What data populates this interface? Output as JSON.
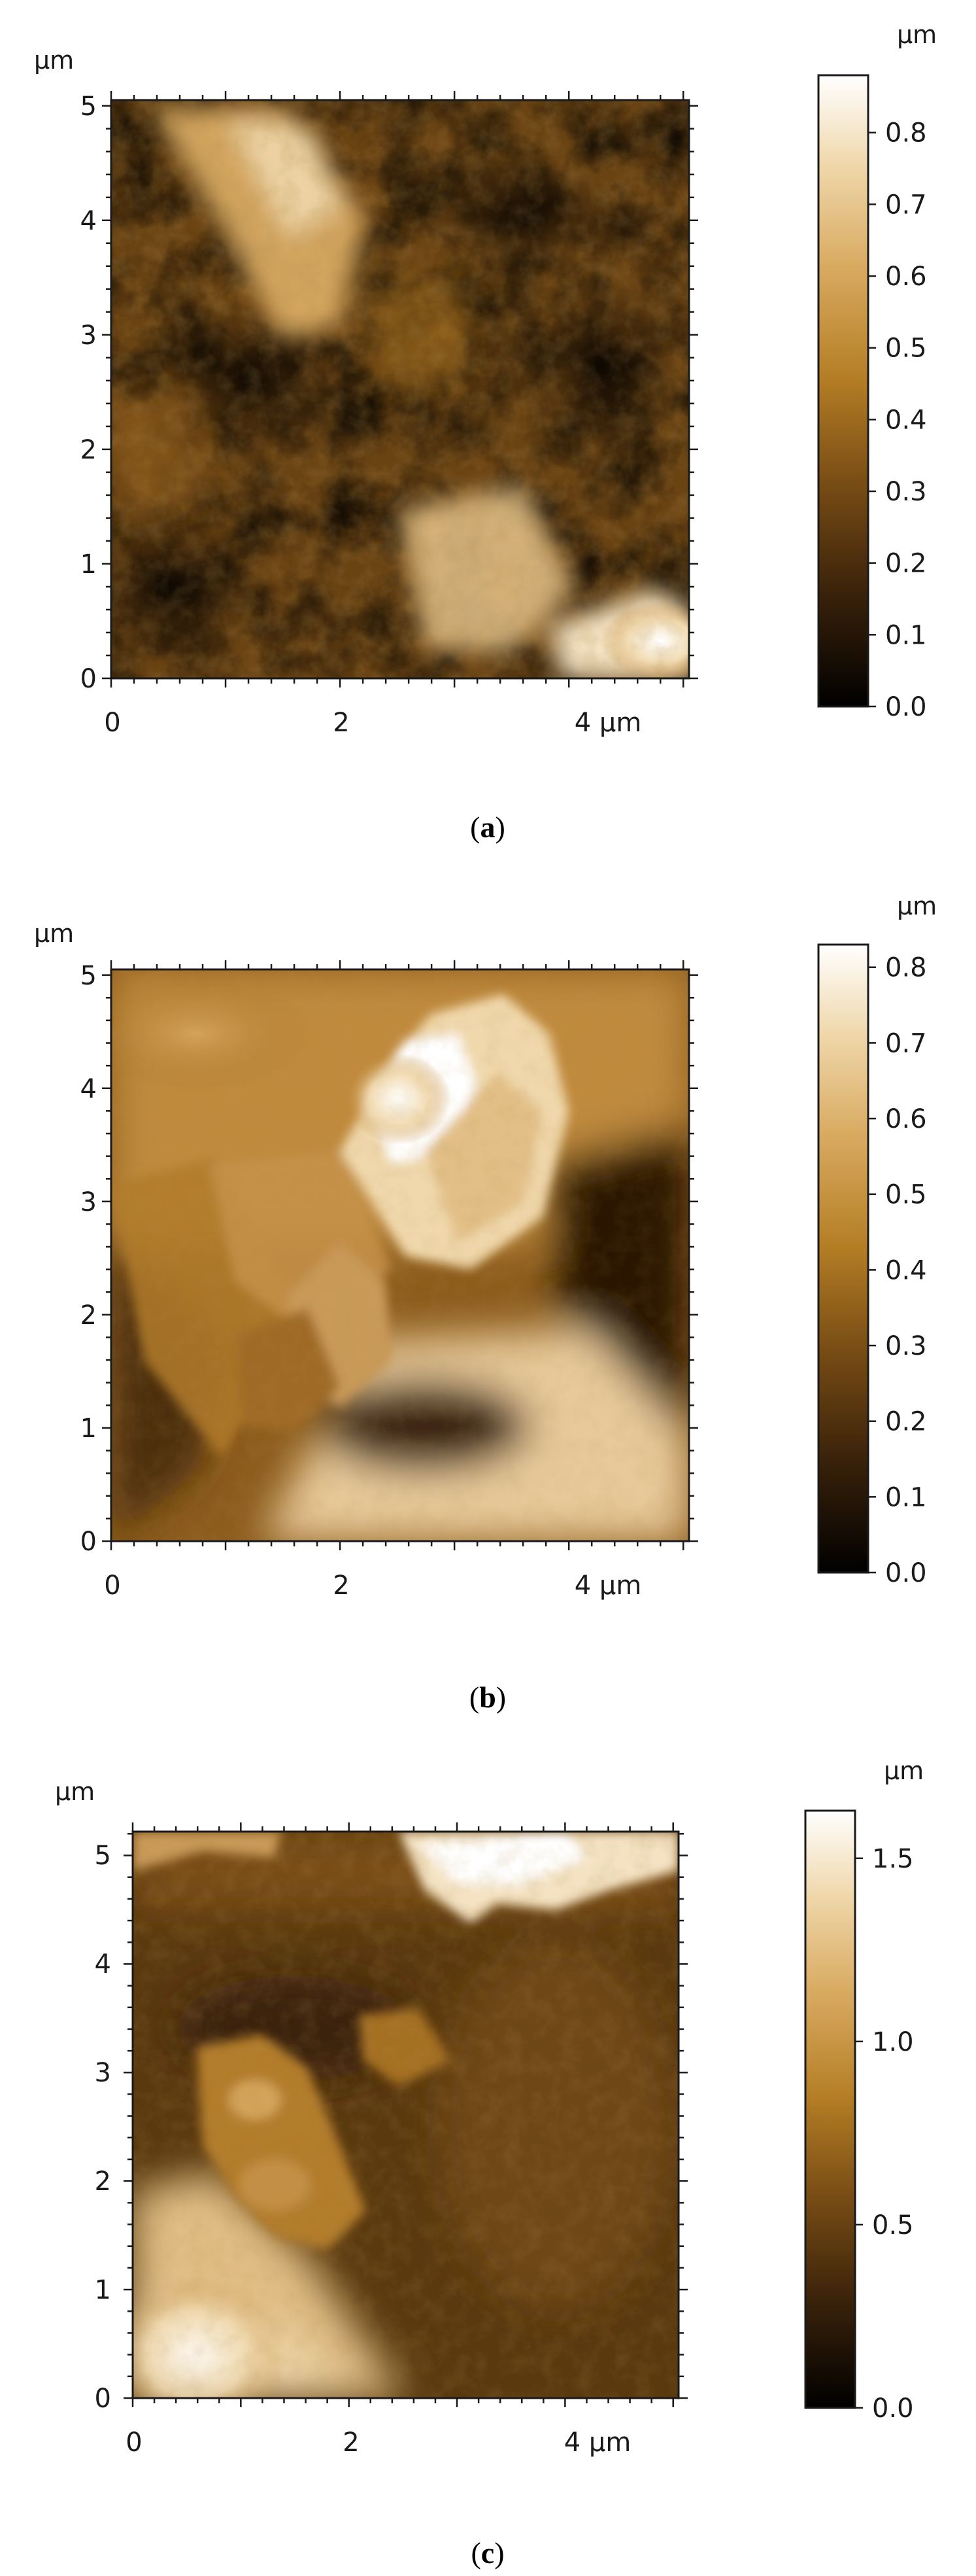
{
  "panels": [
    {
      "id": "a",
      "label_open": "(",
      "label_letter": "a",
      "label_close": ")",
      "axis_unit": "µm",
      "x_ticks": [
        "0",
        "2",
        "4 µm"
      ],
      "y_ticks": [
        "0",
        "1",
        "2",
        "3",
        "4",
        "5"
      ],
      "colorbar_unit": "µm",
      "colorbar_ticks": [
        "0.0",
        "0.1",
        "0.2",
        "0.3",
        "0.4",
        "0.5",
        "0.6",
        "0.7",
        "0.8"
      ],
      "colorbar_max": 0.88
    },
    {
      "id": "b",
      "label_open": "(",
      "label_letter": "b",
      "label_close": ")",
      "axis_unit": "µm",
      "x_ticks": [
        "0",
        "2",
        "4 µm"
      ],
      "y_ticks": [
        "0",
        "1",
        "2",
        "3",
        "4",
        "5"
      ],
      "colorbar_unit": "µm",
      "colorbar_ticks": [
        "0.0",
        "0.1",
        "0.2",
        "0.3",
        "0.4",
        "0.5",
        "0.6",
        "0.7",
        "0.8"
      ],
      "colorbar_max": 0.83
    },
    {
      "id": "c",
      "label_open": "(",
      "label_letter": "c",
      "label_close": ")",
      "axis_unit": "µm",
      "x_ticks": [
        "0",
        "2",
        "4 µm"
      ],
      "y_ticks": [
        "0",
        "1",
        "2",
        "3",
        "4",
        "5"
      ],
      "colorbar_unit": "µm",
      "colorbar_ticks": [
        "0.0",
        "0.5",
        "1.0",
        "1.5"
      ],
      "colorbar_max": 1.63
    }
  ],
  "colormap": [
    "#000000",
    "#3a220a",
    "#7a4e15",
    "#b57e25",
    "#d9ab62",
    "#f0d8ac",
    "#ffffff"
  ]
}
